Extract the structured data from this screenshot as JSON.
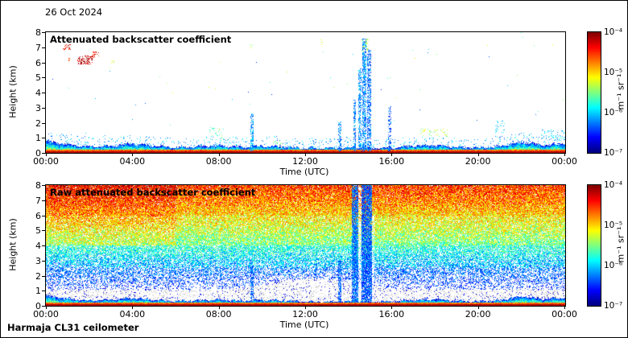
{
  "figure": {
    "date_label": "26 Oct 2024",
    "footer": "Harmaja CL31 ceilometer",
    "background": "#ffffff",
    "border_color": "#000000"
  },
  "chart_data": [
    {
      "type": "heatmap",
      "title": "Attenuated backscatter coefficient",
      "xlabel": "Time (UTC)",
      "ylabel": "Height (km)",
      "x_ticks": [
        "00:00",
        "04:00",
        "08:00",
        "12:00",
        "16:00",
        "20:00",
        "00:00"
      ],
      "y_ticks": [
        "8",
        "7",
        "6",
        "5",
        "4",
        "3",
        "2",
        "1",
        "0"
      ],
      "xlim_hours": [
        0,
        24
      ],
      "ylim_km": [
        0,
        8
      ],
      "grid": false,
      "colormap": "jet",
      "colorbar": {
        "tick_labels": [
          "10⁻⁴",
          "10⁻⁵",
          "10⁻⁶",
          "10⁻⁷"
        ],
        "unit": "m⁻¹ sr⁻¹",
        "log10_range": [
          -7,
          -4
        ]
      },
      "boundary_layer_top_km": {
        "hours": [
          0,
          1,
          2,
          3,
          4,
          5,
          6,
          7,
          8,
          9,
          10,
          11,
          12,
          13,
          14,
          15,
          16,
          17,
          18,
          19,
          20,
          21,
          22,
          23,
          24
        ],
        "values": [
          0.85,
          0.6,
          0.45,
          0.5,
          0.65,
          0.5,
          0.4,
          0.45,
          0.52,
          0.42,
          0.5,
          0.44,
          0.34,
          0.34,
          0.4,
          0.34,
          0.36,
          0.5,
          0.55,
          0.4,
          0.36,
          0.48,
          0.8,
          0.55,
          0.7
        ]
      },
      "features": [
        {
          "kind": "cloud-patch-aloft",
          "t": [
            0.75,
            1.15
          ],
          "z": [
            6.85,
            7.2
          ],
          "log10": -4.35,
          "density": 0.3
        },
        {
          "kind": "cloud-patch-aloft",
          "t": [
            1.0,
            1.15
          ],
          "z": [
            6.1,
            6.3
          ],
          "log10": -4.5,
          "density": 0.25
        },
        {
          "kind": "cloud-patch-aloft",
          "t": [
            1.45,
            2.15
          ],
          "z": [
            5.85,
            6.45
          ],
          "log10": -4.2,
          "density": 0.32
        },
        {
          "kind": "cloud-patch-aloft",
          "t": [
            2.1,
            2.45
          ],
          "z": [
            6.3,
            6.7
          ],
          "log10": -4.45,
          "density": 0.22
        },
        {
          "kind": "speck-aloft",
          "t": [
            3.0,
            3.15
          ],
          "z": [
            5.95,
            6.15
          ],
          "log10": -5.1,
          "density": 0.18
        },
        {
          "kind": "aerosol-dots",
          "t": [
            7.55,
            8.25
          ],
          "z": [
            0.85,
            1.7
          ],
          "log10": -5.6,
          "density": 0.1
        },
        {
          "kind": "precip-column",
          "t": [
            9.42,
            9.58
          ],
          "z": [
            0,
            2.6
          ],
          "log10": -6.15,
          "density": 0.5
        },
        {
          "kind": "speck-aloft",
          "t": [
            9.4,
            9.6
          ],
          "z": [
            6.9,
            7.35
          ],
          "log10": -5.3,
          "density": 0.12
        },
        {
          "kind": "speck-aloft",
          "t": [
            12.55,
            12.8
          ],
          "z": [
            7.15,
            7.5
          ],
          "log10": -5.3,
          "density": 0.12
        },
        {
          "kind": "precip-column",
          "t": [
            13.5,
            13.62
          ],
          "z": [
            0,
            2.1
          ],
          "log10": -6.25,
          "density": 0.42
        },
        {
          "kind": "precip-column",
          "t": [
            14.18,
            14.3
          ],
          "z": [
            0,
            3.6
          ],
          "log10": -6.25,
          "density": 0.5
        },
        {
          "kind": "precip-column",
          "t": [
            14.42,
            14.56
          ],
          "z": [
            0,
            5.6
          ],
          "log10": -6.2,
          "density": 0.55
        },
        {
          "kind": "precip-column",
          "t": [
            14.62,
            14.8
          ],
          "z": [
            0,
            7.6
          ],
          "log10": -6.2,
          "density": 0.6
        },
        {
          "kind": "precip-column",
          "t": [
            14.84,
            15.02
          ],
          "z": [
            0,
            6.9
          ],
          "log10": -6.3,
          "density": 0.5
        },
        {
          "kind": "cloud-top-dots",
          "t": [
            14.55,
            14.9
          ],
          "z": [
            6.7,
            7.6
          ],
          "log10": -5.35,
          "density": 0.18
        },
        {
          "kind": "precip-column",
          "t": [
            15.8,
            15.95
          ],
          "z": [
            0,
            3.1
          ],
          "log10": -6.35,
          "density": 0.35
        },
        {
          "kind": "aerosol-dots",
          "t": [
            17.25,
            18.55
          ],
          "z": [
            1.05,
            1.6
          ],
          "log10": -5.35,
          "density": 0.13
        },
        {
          "kind": "aerosol-dots",
          "t": [
            20.75,
            21.2
          ],
          "z": [
            1.35,
            2.2
          ],
          "log10": -6.0,
          "density": 0.1
        },
        {
          "kind": "aerosol-dots",
          "t": [
            22.85,
            23.95
          ],
          "z": [
            0.8,
            1.55
          ],
          "log10": -6.05,
          "density": 0.12
        },
        {
          "kind": "aerosol-dots",
          "t": [
            10.4,
            10.9
          ],
          "z": [
            0.55,
            0.8
          ],
          "log10": -5.5,
          "density": 0.15
        }
      ],
      "render": {
        "seed": 42,
        "kind": "aerosol"
      }
    },
    {
      "type": "heatmap",
      "title": "Raw attenuated backscatter coefficient",
      "xlabel": "Time (UTC)",
      "ylabel": "Height (km)",
      "x_ticks": [
        "00:00",
        "04:00",
        "08:00",
        "12:00",
        "16:00",
        "20:00",
        "00:00"
      ],
      "y_ticks": [
        "8",
        "7",
        "6",
        "5",
        "4",
        "3",
        "2",
        "1",
        "0"
      ],
      "xlim_hours": [
        0,
        24
      ],
      "ylim_km": [
        0,
        8
      ],
      "grid": false,
      "colormap": "jet",
      "colorbar": {
        "tick_labels": [
          "10⁻⁴",
          "10⁻⁵",
          "10⁻⁶",
          "10⁻⁷"
        ],
        "unit": "m⁻¹ sr⁻¹",
        "log10_range": [
          -7,
          -4
        ]
      },
      "boundary_layer_top_km": {
        "hours": [
          0,
          1,
          2,
          3,
          4,
          5,
          6,
          7,
          8,
          9,
          10,
          11,
          12,
          13,
          14,
          15,
          16,
          17,
          18,
          19,
          20,
          21,
          22,
          23,
          24
        ],
        "values": [
          0.85,
          0.6,
          0.45,
          0.5,
          0.65,
          0.5,
          0.4,
          0.45,
          0.52,
          0.42,
          0.5,
          0.44,
          0.34,
          0.34,
          0.4,
          0.34,
          0.36,
          0.5,
          0.55,
          0.4,
          0.36,
          0.48,
          0.8,
          0.55,
          0.7
        ]
      },
      "features": [
        {
          "kind": "precip-column",
          "mode": "add",
          "t": [
            9.42,
            9.58
          ],
          "z": [
            0.2,
            2.6
          ],
          "log10": -6.3,
          "density": 0.5
        },
        {
          "kind": "precip-column",
          "mode": "add",
          "t": [
            13.5,
            13.62
          ],
          "z": [
            0.2,
            3.0
          ],
          "log10": -6.35,
          "density": 0.7
        },
        {
          "kind": "precip-column",
          "mode": "add",
          "t": [
            14.12,
            14.42
          ],
          "z": [
            0.2,
            8
          ],
          "log10": -6.3,
          "density": 0.8
        },
        {
          "kind": "attenuated-gap",
          "mode": "erase",
          "t": [
            14.42,
            14.58
          ],
          "z": [
            0.5,
            8
          ],
          "density": 0.6
        },
        {
          "kind": "precip-column",
          "mode": "add",
          "t": [
            14.58,
            15.05
          ],
          "z": [
            0.2,
            8
          ],
          "log10": -6.35,
          "density": 0.8
        },
        {
          "kind": "attenuated-gap",
          "mode": "erase",
          "t": [
            15.05,
            15.18
          ],
          "z": [
            0.5,
            6
          ],
          "density": 0.5
        },
        {
          "kind": "attenuated-gap",
          "mode": "erase",
          "t": [
            12.88,
            13.05
          ],
          "z": [
            0.4,
            1.9
          ],
          "density": 0.7
        }
      ],
      "render": {
        "seed": 1337,
        "kind": "raw"
      }
    }
  ]
}
